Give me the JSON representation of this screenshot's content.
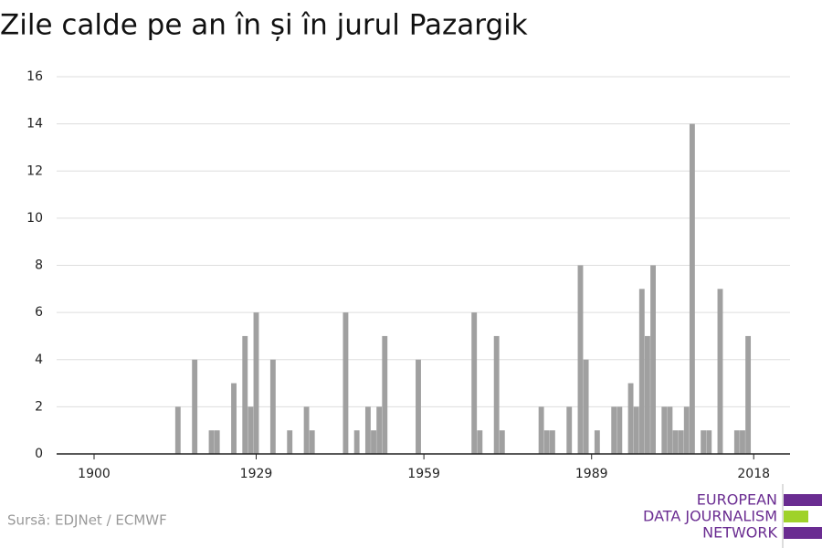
{
  "chart_data": {
    "type": "bar",
    "title": "Zile calde pe an în și în jurul Pazargik",
    "x": [
      1915,
      1918,
      1921,
      1922,
      1925,
      1927,
      1928,
      1929,
      1932,
      1935,
      1938,
      1939,
      1945,
      1947,
      1949,
      1950,
      1951,
      1952,
      1958,
      1968,
      1969,
      1972,
      1973,
      1980,
      1981,
      1982,
      1985,
      1987,
      1988,
      1990,
      1993,
      1994,
      1996,
      1997,
      1998,
      1999,
      2000,
      2002,
      2003,
      2004,
      2005,
      2006,
      2007,
      2009,
      2010,
      2012,
      2015,
      2016,
      2017
    ],
    "values": [
      2,
      4,
      1,
      1,
      3,
      5,
      2,
      6,
      4,
      1,
      2,
      1,
      6,
      1,
      2,
      1,
      2,
      5,
      4,
      6,
      1,
      5,
      1,
      2,
      1,
      1,
      2,
      8,
      4,
      1,
      2,
      2,
      3,
      2,
      7,
      5,
      8,
      2,
      2,
      1,
      1,
      2,
      14,
      1,
      1,
      7,
      1,
      1,
      5
    ],
    "color": "#a0a0a0",
    "xlim": [
      1893.3,
      2024.5
    ],
    "xticks": [
      1900,
      1929,
      1959,
      1989,
      2018
    ],
    "ylim": [
      0,
      16
    ],
    "yticks": [
      0,
      2,
      4,
      6,
      8,
      10,
      12,
      14,
      16
    ],
    "grid": true,
    "source": "Sursă: EDJNet / ECMWF",
    "logo": [
      "EUROPEAN",
      "DATA JOURNALISM",
      "NETWORK"
    ]
  }
}
